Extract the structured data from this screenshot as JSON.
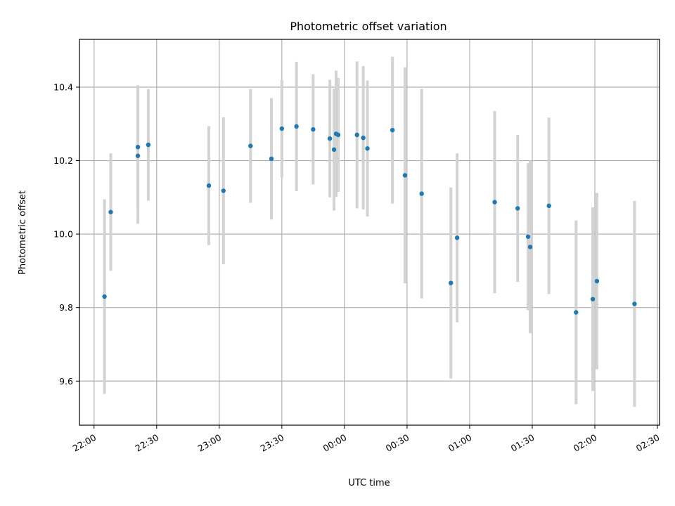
{
  "chart_data": {
    "type": "scatter",
    "title": "Photometric offset variation",
    "xlabel": "UTC time",
    "ylabel": "Photometric offset",
    "xlim": [
      "21:53",
      "02:31"
    ],
    "ylim": [
      9.48,
      10.53
    ],
    "x_ticks": [
      "22:00",
      "22:30",
      "23:00",
      "23:30",
      "00:00",
      "00:30",
      "01:00",
      "01:30",
      "02:00",
      "02:30"
    ],
    "y_ticks": [
      9.6,
      9.8,
      10.0,
      10.2,
      10.4
    ],
    "y_tick_labels": [
      "9.6",
      "9.8",
      "10.0",
      "10.2",
      "10.4"
    ],
    "grid": true,
    "colors": {
      "point": "#1f77b4",
      "errorbar": "#d3d3d3",
      "grid": "#b0b0b0"
    },
    "points": [
      {
        "time": "22:05",
        "y": 9.83,
        "err": 0.265
      },
      {
        "time": "22:08",
        "y": 10.06,
        "err": 0.16
      },
      {
        "time": "22:21",
        "y": 10.237,
        "err": 0.168
      },
      {
        "time": "22:21",
        "y": 10.213,
        "err": 0.185
      },
      {
        "time": "22:26",
        "y": 10.243,
        "err": 0.152
      },
      {
        "time": "22:55",
        "y": 10.132,
        "err": 0.162
      },
      {
        "time": "23:02",
        "y": 10.118,
        "err": 0.2
      },
      {
        "time": "23:15",
        "y": 10.24,
        "err": 0.155
      },
      {
        "time": "23:25",
        "y": 10.205,
        "err": 0.165
      },
      {
        "time": "23:30",
        "y": 10.287,
        "err": 0.133
      },
      {
        "time": "23:37",
        "y": 10.293,
        "err": 0.176
      },
      {
        "time": "23:45",
        "y": 10.285,
        "err": 0.15
      },
      {
        "time": "23:53",
        "y": 10.26,
        "err": 0.16
      },
      {
        "time": "23:55",
        "y": 10.23,
        "err": 0.166
      },
      {
        "time": "23:56",
        "y": 10.273,
        "err": 0.172
      },
      {
        "time": "23:57",
        "y": 10.27,
        "err": 0.155
      },
      {
        "time": "00:06",
        "y": 10.27,
        "err": 0.2
      },
      {
        "time": "00:09",
        "y": 10.262,
        "err": 0.195
      },
      {
        "time": "00:11",
        "y": 10.233,
        "err": 0.185
      },
      {
        "time": "00:23",
        "y": 10.283,
        "err": 0.2
      },
      {
        "time": "00:29",
        "y": 10.16,
        "err": 0.294
      },
      {
        "time": "00:37",
        "y": 10.11,
        "err": 0.285
      },
      {
        "time": "00:51",
        "y": 9.867,
        "err": 0.26
      },
      {
        "time": "00:54",
        "y": 9.99,
        "err": 0.23
      },
      {
        "time": "01:12",
        "y": 10.087,
        "err": 0.248
      },
      {
        "time": "01:23",
        "y": 10.07,
        "err": 0.2
      },
      {
        "time": "01:28",
        "y": 9.993,
        "err": 0.2
      },
      {
        "time": "01:29",
        "y": 9.965,
        "err": 0.235
      },
      {
        "time": "01:38",
        "y": 10.077,
        "err": 0.24
      },
      {
        "time": "01:51",
        "y": 9.787,
        "err": 0.25
      },
      {
        "time": "01:59",
        "y": 9.823,
        "err": 0.25
      },
      {
        "time": "02:01",
        "y": 9.872,
        "err": 0.24
      },
      {
        "time": "02:19",
        "y": 9.81,
        "err": 0.28
      }
    ]
  }
}
